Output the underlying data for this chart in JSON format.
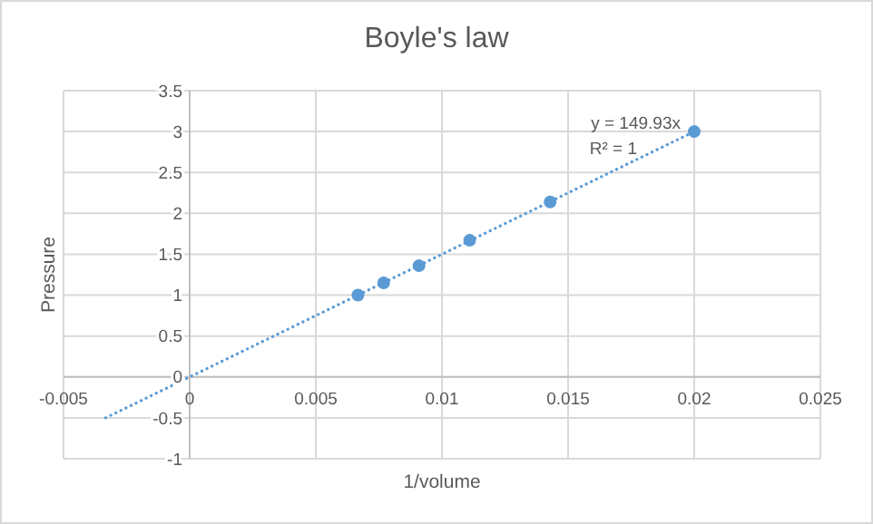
{
  "chart_data": {
    "type": "scatter",
    "title": "Boyle's law",
    "xlabel": "1/volume",
    "ylabel": "Pressure",
    "xlim": [
      -0.005,
      0.025
    ],
    "xticks": [
      -0.005,
      0,
      0.005,
      0.01,
      0.015,
      0.02,
      0.025
    ],
    "ylim": [
      -1,
      3.5
    ],
    "yticks": [
      -1,
      -0.5,
      0,
      0.5,
      1,
      1.5,
      2,
      2.5,
      3,
      3.5
    ],
    "grid": true,
    "marker": "circle",
    "series": [
      {
        "type": "scatter",
        "color": "#5b9bd5",
        "x": [
          0.00667,
          0.00769,
          0.00909,
          0.0111,
          0.01429,
          0.02
        ],
        "values": [
          1.0,
          1.15,
          1.36,
          1.67,
          2.14,
          3.0
        ]
      },
      {
        "type": "line",
        "color": "#5b9bd5",
        "line_style": "dotted",
        "marker": "none",
        "x": [
          -0.00333,
          0.02
        ],
        "values": [
          -0.5,
          3.0
        ]
      }
    ],
    "annotations": [
      "y = 149.93x",
      "R² = 1"
    ]
  }
}
